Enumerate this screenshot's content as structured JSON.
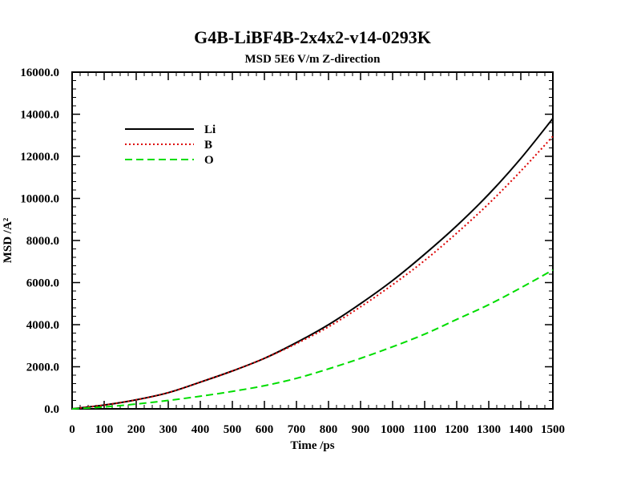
{
  "chart_data": {
    "type": "line",
    "title": "G4B-LiBF4B-2x4x2-v14-0293K",
    "subtitle": "MSD  5E6 V/m Z-direction",
    "xlabel": "Time /ps",
    "ylabel": "MSD /A²",
    "xlim": [
      0,
      1500
    ],
    "ylim": [
      0,
      16000
    ],
    "x_ticks": [
      0,
      100,
      200,
      300,
      400,
      500,
      600,
      700,
      800,
      900,
      1000,
      1100,
      1200,
      1300,
      1400,
      1500
    ],
    "x_tick_labels": [
      "0",
      "100",
      "200",
      "300",
      "400",
      "500",
      "600",
      "700",
      "800",
      "900",
      "1000",
      "1100",
      "1200",
      "1300",
      "1400",
      "1500"
    ],
    "y_ticks": [
      0,
      2000,
      4000,
      6000,
      8000,
      10000,
      12000,
      14000,
      16000
    ],
    "y_tick_labels": [
      "0.0",
      "2000.0",
      "4000.0",
      "6000.0",
      "8000.0",
      "10000.0",
      "12000.0",
      "14000.0",
      "16000.0"
    ],
    "grid": false,
    "legend_position": "top-left",
    "x": [
      0,
      100,
      200,
      300,
      400,
      500,
      600,
      700,
      800,
      900,
      1000,
      1100,
      1200,
      1300,
      1400,
      1500
    ],
    "series": [
      {
        "name": "Li",
        "color": "#000000",
        "style": "solid",
        "values": [
          0,
          180,
          430,
          770,
          1270,
          1800,
          2400,
          3150,
          4000,
          5000,
          6100,
          7350,
          8700,
          10200,
          11900,
          13800
        ]
      },
      {
        "name": "B",
        "color": "#dd0000",
        "style": "dotted",
        "values": [
          0,
          180,
          430,
          770,
          1270,
          1800,
          2400,
          3100,
          3900,
          4850,
          5900,
          7050,
          8350,
          9750,
          11300,
          12950
        ]
      },
      {
        "name": "O",
        "color": "#00dd00",
        "style": "dashed",
        "values": [
          0,
          90,
          230,
          400,
          600,
          830,
          1100,
          1450,
          1900,
          2400,
          2950,
          3550,
          4250,
          4950,
          5750,
          6600
        ]
      }
    ]
  }
}
